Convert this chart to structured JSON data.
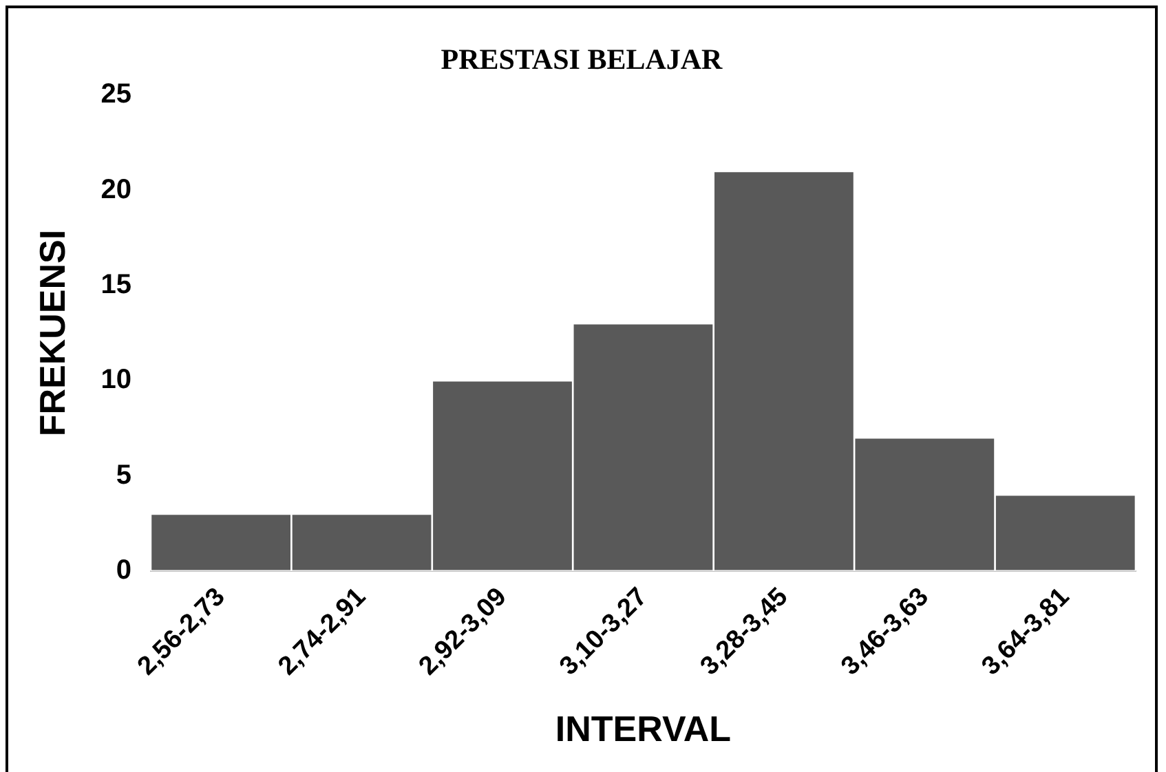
{
  "chart_data": {
    "type": "bar",
    "title": "PRESTASI BELAJAR",
    "xlabel": "INTERVAL",
    "ylabel": "FREKUENSI",
    "categories": [
      "2,56-2,73",
      "2,74-2,91",
      "2,92-3,09",
      "3,10-3,27",
      "3,28-3,45",
      "3,46-3,63",
      "3,64-3,81"
    ],
    "values": [
      3,
      3,
      10,
      13,
      21,
      7,
      4
    ],
    "color": "#595959",
    "ylim": [
      0,
      25
    ],
    "yticks": [
      0,
      5,
      10,
      15,
      20,
      25
    ],
    "grid": false,
    "legend": false
  }
}
